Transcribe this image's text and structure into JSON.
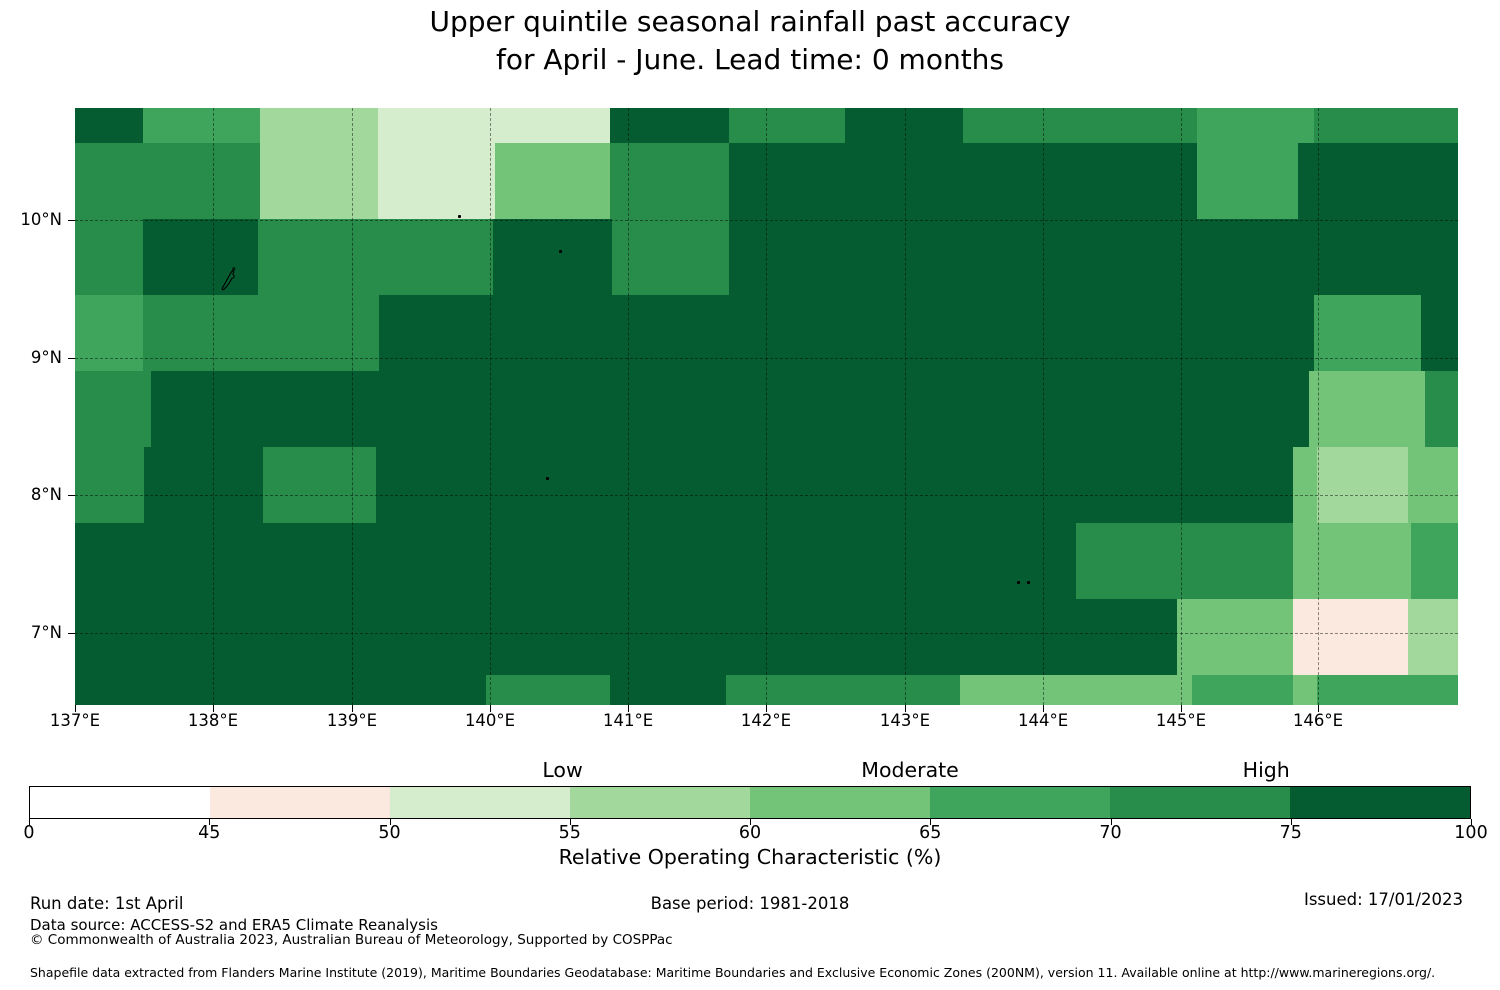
{
  "title": {
    "line1": "Upper quintile seasonal rainfall past accuracy",
    "line2": "for April - June. Lead time: 0 months"
  },
  "chart_data": {
    "type": "heatmap",
    "title": "Upper quintile seasonal rainfall past accuracy for April - June. Lead time: 0 months",
    "value_name": "Relative Operating Characteristic (%)",
    "bins": [
      {
        "range": "0-45",
        "color": "#ffffff",
        "category": "Low"
      },
      {
        "range": "45-50",
        "color": "#fbe9df",
        "category": "Low"
      },
      {
        "range": "50-55",
        "color": "#d5edcd",
        "category": "Low"
      },
      {
        "range": "55-60",
        "color": "#a3d89c",
        "category": "Moderate"
      },
      {
        "range": "60-65",
        "color": "#73c478",
        "category": "Moderate"
      },
      {
        "range": "65-70",
        "color": "#3fa45c",
        "category": "Moderate"
      },
      {
        "range": "70-75",
        "color": "#288c4a",
        "category": "High"
      },
      {
        "range": "75-100",
        "color": "#045c30",
        "category": "High"
      }
    ],
    "grid_note": "rows top to bottom (approx 10.8N-6.5N); each run = [width_pct, bin_index]",
    "grid_rows": [
      {
        "h": 5.86,
        "runs": [
          [
            4.9,
            7
          ],
          [
            8.5,
            5
          ],
          [
            8.5,
            3
          ],
          [
            16.8,
            2
          ],
          [
            8.6,
            7
          ],
          [
            8.4,
            6
          ],
          [
            8.5,
            7
          ],
          [
            16.9,
            6
          ],
          [
            8.5,
            5
          ],
          [
            10.4,
            6
          ]
        ]
      },
      {
        "h": 12.73,
        "runs": [
          [
            13.4,
            6
          ],
          [
            8.5,
            3
          ],
          [
            8.5,
            2
          ],
          [
            8.3,
            4
          ],
          [
            8.6,
            6
          ],
          [
            33.8,
            7
          ],
          [
            7.3,
            5
          ],
          [
            11.6,
            7
          ]
        ]
      },
      {
        "h": 12.73,
        "runs": [
          [
            4.9,
            6
          ],
          [
            8.3,
            7
          ],
          [
            17.0,
            6
          ],
          [
            8.6,
            7
          ],
          [
            8.5,
            6
          ],
          [
            52.7,
            7
          ]
        ]
      },
      {
        "h": 12.73,
        "runs": [
          [
            4.9,
            5
          ],
          [
            17.1,
            6
          ],
          [
            67.6,
            7
          ],
          [
            7.7,
            5
          ],
          [
            2.7,
            7
          ]
        ]
      },
      {
        "h": 12.73,
        "runs": [
          [
            5.5,
            6
          ],
          [
            83.7,
            7
          ],
          [
            8.4,
            4
          ],
          [
            2.4,
            6
          ]
        ]
      },
      {
        "h": 12.73,
        "runs": [
          [
            5.0,
            6
          ],
          [
            8.6,
            7
          ],
          [
            8.2,
            6
          ],
          [
            66.3,
            7
          ],
          [
            1.7,
            4
          ],
          [
            6.6,
            3
          ],
          [
            3.6,
            4
          ]
        ]
      },
      {
        "h": 12.73,
        "runs": [
          [
            72.4,
            7
          ],
          [
            15.7,
            6
          ],
          [
            8.5,
            4
          ],
          [
            3.4,
            5
          ]
        ]
      },
      {
        "h": 12.73,
        "runs": [
          [
            79.7,
            7
          ],
          [
            8.4,
            4
          ],
          [
            8.3,
            1
          ],
          [
            3.6,
            3
          ]
        ]
      },
      {
        "h": 5.03,
        "runs": [
          [
            29.7,
            7
          ],
          [
            9.0,
            6
          ],
          [
            8.4,
            7
          ],
          [
            16.9,
            6
          ],
          [
            16.8,
            4
          ],
          [
            7.3,
            5
          ],
          [
            1.7,
            4
          ],
          [
            10.2,
            5
          ]
        ]
      }
    ],
    "x_axis": {
      "ticks": [
        {
          "label": "137°E",
          "pct": 0
        },
        {
          "label": "138°E",
          "pct": 9.98
        },
        {
          "label": "139°E",
          "pct": 20.03
        },
        {
          "label": "140°E",
          "pct": 30.01
        },
        {
          "label": "141°E",
          "pct": 39.99
        },
        {
          "label": "142°E",
          "pct": 49.96
        },
        {
          "label": "143°E",
          "pct": 60.01
        },
        {
          "label": "144°E",
          "pct": 70.0
        },
        {
          "label": "145°E",
          "pct": 79.97
        },
        {
          "label": "146°E",
          "pct": 89.88
        }
      ]
    },
    "y_axis": {
      "ticks": [
        {
          "label": "10°N",
          "pct": 18.76
        },
        {
          "label": "9°N",
          "pct": 41.88
        },
        {
          "label": "8°N",
          "pct": 64.82
        },
        {
          "label": "7°N",
          "pct": 87.94
        }
      ]
    },
    "graticule": {
      "lons_pct": [
        9.98,
        20.03,
        30.01,
        39.99,
        49.96,
        60.01,
        70.0,
        79.97,
        89.88
      ],
      "lats_pct": [
        18.76,
        41.88,
        64.82,
        87.94
      ]
    },
    "islands": [
      {
        "x": 11.2,
        "y": 29.3,
        "type": "outline",
        "name": "yap-island"
      },
      {
        "x": 27.8,
        "y": 18.1,
        "type": "dot"
      },
      {
        "x": 35.1,
        "y": 23.9,
        "type": "dot"
      },
      {
        "x": 34.1,
        "y": 62.0,
        "type": "dot"
      },
      {
        "x": 68.2,
        "y": 79.4,
        "type": "dot"
      },
      {
        "x": 68.9,
        "y": 79.4,
        "type": "dot"
      }
    ],
    "colorbar": {
      "tick_labels": [
        "0",
        "45",
        "50",
        "55",
        "60",
        "65",
        "70",
        "75",
        "100"
      ],
      "regions": [
        {
          "label": "Low",
          "pct": 37.0
        },
        {
          "label": "Moderate",
          "pct": 61.1
        },
        {
          "label": "High",
          "pct": 85.8
        }
      ],
      "axis_label": "Relative Operating Characteristic (%)"
    }
  },
  "footer": {
    "run_date": "Run date: 1st April",
    "data_source": "Data source: ACCESS-S2 and ERA5 Climate Reanalysis",
    "copyright": "© Commonwealth of Australia 2023, Australian Bureau of Meteorology, Supported by COSPPac",
    "base_period": "Base period: 1981-2018",
    "issued": "Issued: 17/01/2023",
    "shapefile_note": "Shapefile data extracted from Flanders Marine Institute (2019), Maritime Boundaries Geodatabase: Maritime Boundaries and Exclusive Economic Zones (200NM), version 11. Available online at http://www.marineregions.org/."
  }
}
